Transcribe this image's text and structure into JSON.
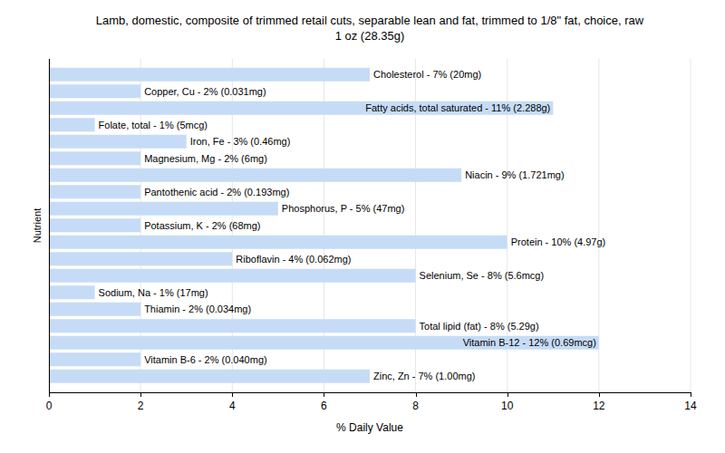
{
  "chart_data": {
    "type": "bar",
    "orientation": "horizontal",
    "title": "Lamb, domestic, composite of trimmed retail cuts, separable lean and fat, trimmed to 1/8\" fat, choice, raw",
    "subtitle": "1 oz (28.35g)",
    "x_label": "% Daily Value",
    "y_label": "Nutrient",
    "categories": [
      "Cholesterol - 7% (20mg)",
      "Copper, Cu - 2% (0.031mg)",
      "Fatty acids, total saturated - 11% (2.288g)",
      "Folate, total - 1% (5mcg)",
      "Iron, Fe - 3% (0.46mg)",
      "Magnesium, Mg - 2% (6mg)",
      "Niacin - 9% (1.721mg)",
      "Pantothenic acid - 2% (0.193mg)",
      "Phosphorus, P - 5% (47mg)",
      "Potassium, K - 2% (68mg)",
      "Protein - 10% (4.97g)",
      "Riboflavin - 4% (0.062mg)",
      "Selenium, Se - 8% (5.6mcg)",
      "Sodium, Na - 1% (17mg)",
      "Thiamin - 2% (0.034mg)",
      "Total lipid (fat) - 8% (5.29g)",
      "Vitamin B-12 - 12% (0.69mcg)",
      "Vitamin B-6 - 2% (0.040mg)",
      "Zinc, Zn - 7% (1.00mg)"
    ],
    "values": [
      7,
      2,
      11,
      1,
      3,
      2,
      9,
      2,
      5,
      2,
      10,
      4,
      8,
      1,
      2,
      8,
      12,
      2,
      7
    ],
    "color": "#c6dcf6",
    "xlim": [
      0,
      14
    ],
    "xticks": [
      0,
      2,
      4,
      6,
      8,
      10,
      12,
      14
    ],
    "grid": true
  }
}
